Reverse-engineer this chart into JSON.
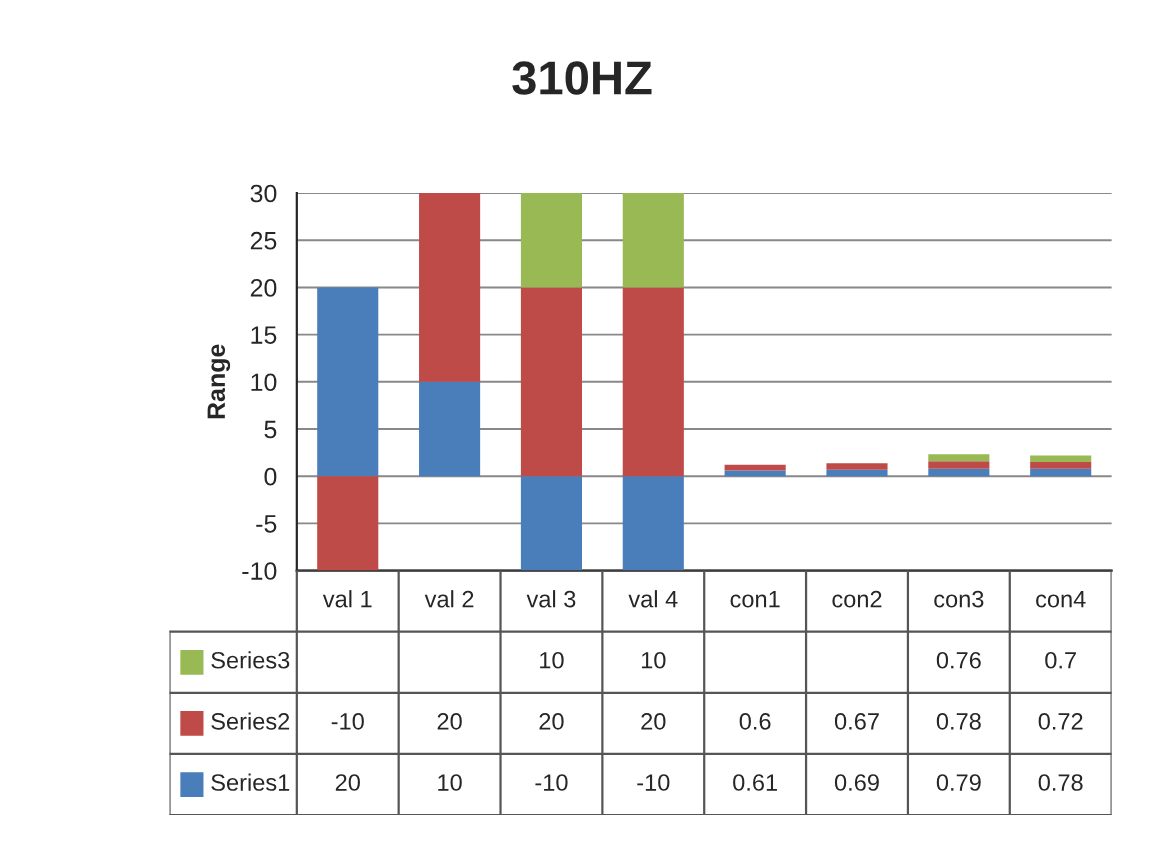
{
  "chart_data": {
    "type": "bar",
    "title": "310HZ",
    "ylabel": "Range",
    "categories": [
      "val 1",
      "val 2",
      "val 3",
      "val 4",
      "con1",
      "con2",
      "con3",
      "con4"
    ],
    "series": [
      {
        "name": "Series1",
        "color": "#4a7ebb",
        "values": [
          20,
          10,
          -10,
          -10,
          0.61,
          0.69,
          0.79,
          0.78
        ]
      },
      {
        "name": "Series2",
        "color": "#be4b48",
        "values": [
          -10,
          20,
          20,
          20,
          0.6,
          0.67,
          0.78,
          0.72
        ]
      },
      {
        "name": "Series3",
        "color": "#98b954",
        "values": [
          null,
          null,
          10,
          10,
          null,
          null,
          0.76,
          0.7
        ]
      }
    ],
    "stacked": true,
    "ylim": [
      -10,
      30
    ],
    "yticks": [
      -10,
      -5,
      0,
      5,
      10,
      15,
      20,
      25,
      30
    ],
    "grid": "y",
    "data_labels": true,
    "legend": "bottom"
  }
}
